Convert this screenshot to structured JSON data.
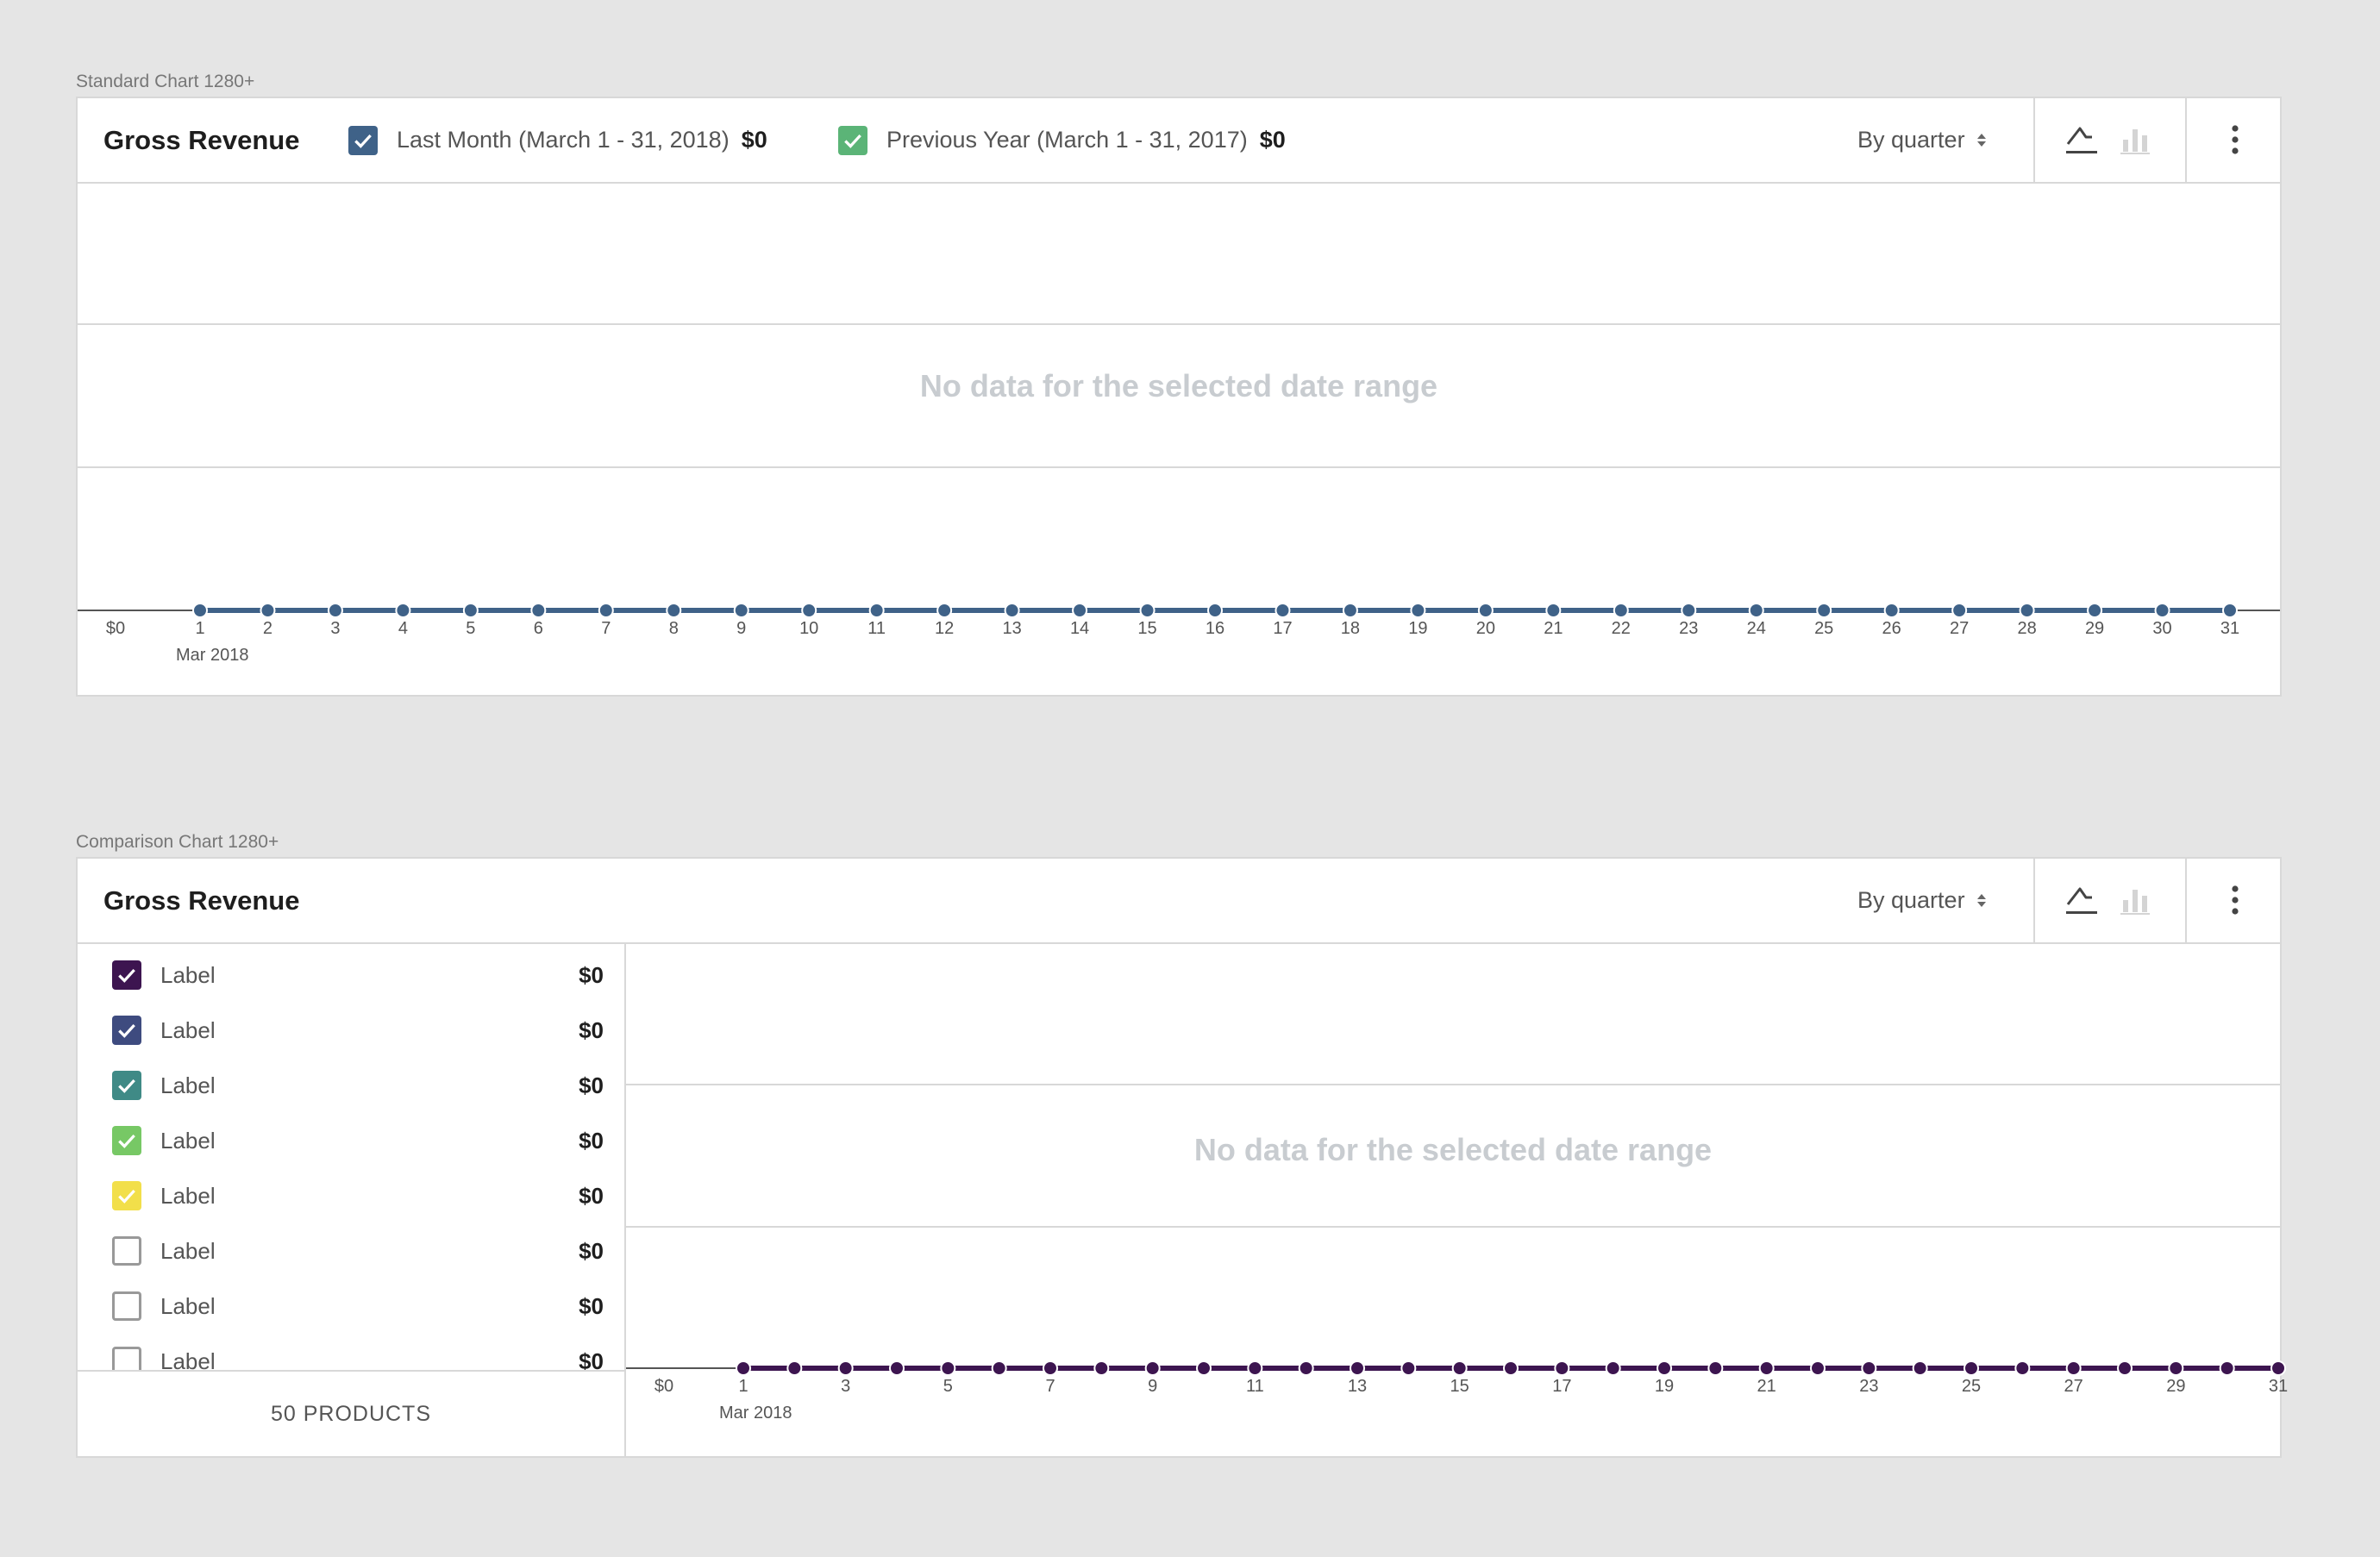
{
  "standard": {
    "section_label": "Standard Chart 1280+",
    "title": "Gross Revenue",
    "legend": [
      {
        "label": "Last Month (March 1 - 31, 2018)",
        "value": "$0",
        "color": "#3f6288",
        "checked": true
      },
      {
        "label": "Previous Year (March 1 - 31, 2017)",
        "value": "$0",
        "color": "#5bb477",
        "checked": true
      }
    ],
    "interval": "By quarter",
    "icons": {
      "line_chart": "line-chart-icon",
      "bar_chart": "bar-chart-icon",
      "menu": "more-vertical-icon"
    },
    "no_data": "No data for the selected date range",
    "chart_data": {
      "type": "line",
      "y_tick": "$0",
      "x_ticks": [
        "1",
        "2",
        "3",
        "4",
        "5",
        "6",
        "7",
        "8",
        "9",
        "10",
        "11",
        "12",
        "13",
        "14",
        "15",
        "16",
        "17",
        "18",
        "19",
        "20",
        "21",
        "22",
        "23",
        "24",
        "25",
        "26",
        "27",
        "28",
        "29",
        "30",
        "31"
      ],
      "x_sublabel": "Mar 2018",
      "series": [
        {
          "color": "#3f6288",
          "values": [
            0,
            0,
            0,
            0,
            0,
            0,
            0,
            0,
            0,
            0,
            0,
            0,
            0,
            0,
            0,
            0,
            0,
            0,
            0,
            0,
            0,
            0,
            0,
            0,
            0,
            0,
            0,
            0,
            0,
            0,
            0
          ]
        }
      ]
    }
  },
  "comparison": {
    "section_label": "Comparison Chart 1280+",
    "title": "Gross Revenue",
    "interval": "By quarter",
    "icons": {
      "line_chart": "line-chart-icon",
      "bar_chart": "bar-chart-icon",
      "menu": "more-vertical-icon"
    },
    "no_data": "No data for the selected date range",
    "items": [
      {
        "label": "Label",
        "value": "$0",
        "checked": true,
        "color": "#3d1550"
      },
      {
        "label": "Label",
        "value": "$0",
        "checked": true,
        "color": "#3e4b7f"
      },
      {
        "label": "Label",
        "value": "$0",
        "checked": true,
        "color": "#3f8a86"
      },
      {
        "label": "Label",
        "value": "$0",
        "checked": true,
        "color": "#77c865"
      },
      {
        "label": "Label",
        "value": "$0",
        "checked": true,
        "color": "#f2df4a"
      },
      {
        "label": "Label",
        "value": "$0",
        "checked": false,
        "color": "#999999"
      },
      {
        "label": "Label",
        "value": "$0",
        "checked": false,
        "color": "#999999"
      },
      {
        "label": "Label",
        "value": "$0",
        "checked": false,
        "color": "#999999"
      }
    ],
    "footer": "50 PRODUCTS",
    "chart_data": {
      "type": "line",
      "y_tick": "$0",
      "x_ticks": [
        "1",
        "3",
        "5",
        "7",
        "9",
        "11",
        "13",
        "15",
        "17",
        "19",
        "21",
        "23",
        "25",
        "27",
        "29",
        "31"
      ],
      "x_sublabel": "Mar 2018",
      "series": [
        {
          "color": "#3d1550",
          "values": [
            0,
            0,
            0,
            0,
            0,
            0,
            0,
            0,
            0,
            0,
            0,
            0,
            0,
            0,
            0,
            0,
            0,
            0,
            0,
            0,
            0,
            0,
            0,
            0,
            0,
            0,
            0,
            0,
            0,
            0,
            0
          ]
        }
      ]
    }
  }
}
